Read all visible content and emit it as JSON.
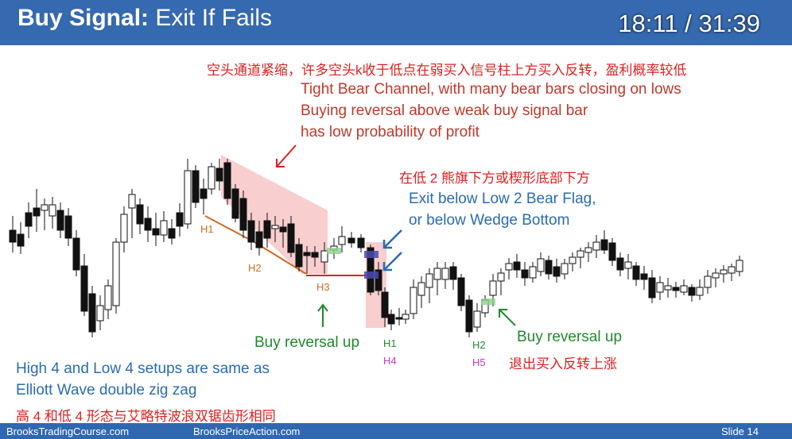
{
  "title": {
    "bold": "Buy Signal:",
    "rest": " Exit If Fails"
  },
  "timer": "18:11 / 31:39",
  "annotations": {
    "top_cn": "空头通道紧缩，许多空头k收于低点在弱买入信号柱上方买入反转，盈利概率较低",
    "top_en_1": "Tight Bear Channel, with many bear bars closing on lows",
    "top_en_2": "Buying reversal above weak buy signal bar",
    "top_en_3": "has low probability of profit",
    "exit_cn": "在低 2 熊旗下方或楔形底部下方",
    "exit_en_1": "Exit below Low 2 Bear Flag,",
    "exit_en_2": "or below Wedge Bottom",
    "buy_rev_1": "Buy reversal up",
    "buy_rev_2": "Buy reversal up",
    "exit_rev_cn": "退出买入反转上涨",
    "bottom_en_1": "High 4 and Low 4 setups are same as",
    "bottom_en_2": "Elliott Wave double zig zag",
    "bottom_cn": "高 4 和低 4 形态与艾略特波浪双锯齿形相同"
  },
  "labels": {
    "h1a": "H1",
    "h2a": "H2",
    "h3": "H3",
    "h1b": "H1",
    "h4": "H4",
    "h2b": "H2",
    "h5": "H5"
  },
  "colors": {
    "accent": "#3569b0",
    "bull": "#ffffff",
    "bear": "#111111",
    "pink": "#f4a6a6",
    "green": "#1f8a2a",
    "blue": "#2a6cb4",
    "red": "#e02020"
  },
  "footer": {
    "left": "BrooksTradingCourse.com",
    "mid": "BrooksPriceAction.com",
    "right": "Slide  14"
  }
}
